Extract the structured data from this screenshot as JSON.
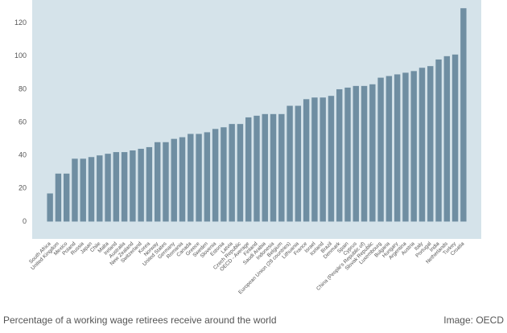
{
  "chart_data": {
    "type": "bar",
    "title": "Percentage of a working wage retirees receive around the world",
    "source": "Image: OECD",
    "categories": [
      "South Africa",
      "United Kingdom",
      "Mexico",
      "Poland",
      "Russia",
      "Japan",
      "Chile",
      "Malta",
      "Ireland",
      "Australia",
      "New Zealand",
      "Switzerland",
      "Korea",
      "Norway",
      "United States",
      "Germany",
      "Romania",
      "Canada",
      "Greece",
      "Sweden",
      "Slovenia",
      "Estonia",
      "Latvia",
      "Czech Republic",
      "OECD - Average",
      "Finland",
      "Saudi Arabia",
      "Indonesia",
      "Belgium",
      "European Union (28 countries)",
      "Lithuania",
      "France",
      "Israel",
      "Iceland",
      "Brazil",
      "Denmark",
      "Spain",
      "Cyprus",
      "China (People's Republic of)",
      "Slovak Republic",
      "Luxembourg",
      "Bulgaria",
      "Hungary",
      "Argentina",
      "Austria",
      "Italy",
      "Portugal",
      "India",
      "Netherlands",
      "Turkey",
      "Croatia"
    ],
    "values": [
      17,
      29,
      29,
      38,
      38,
      39,
      40,
      41,
      42,
      42,
      43,
      44,
      45,
      48,
      48,
      50,
      51,
      53,
      53,
      54,
      56,
      57,
      59,
      59,
      63,
      64,
      65,
      65,
      65,
      70,
      70,
      74,
      75,
      75,
      76,
      80,
      81,
      82,
      82,
      83,
      87,
      88,
      89,
      90,
      91,
      93,
      94,
      98,
      100,
      101,
      129
    ],
    "color": "#6f8ea2",
    "ylim": [
      -10,
      133
    ],
    "yticks": [
      0,
      20,
      40,
      60,
      80,
      100,
      120
    ],
    "grid": false
  }
}
